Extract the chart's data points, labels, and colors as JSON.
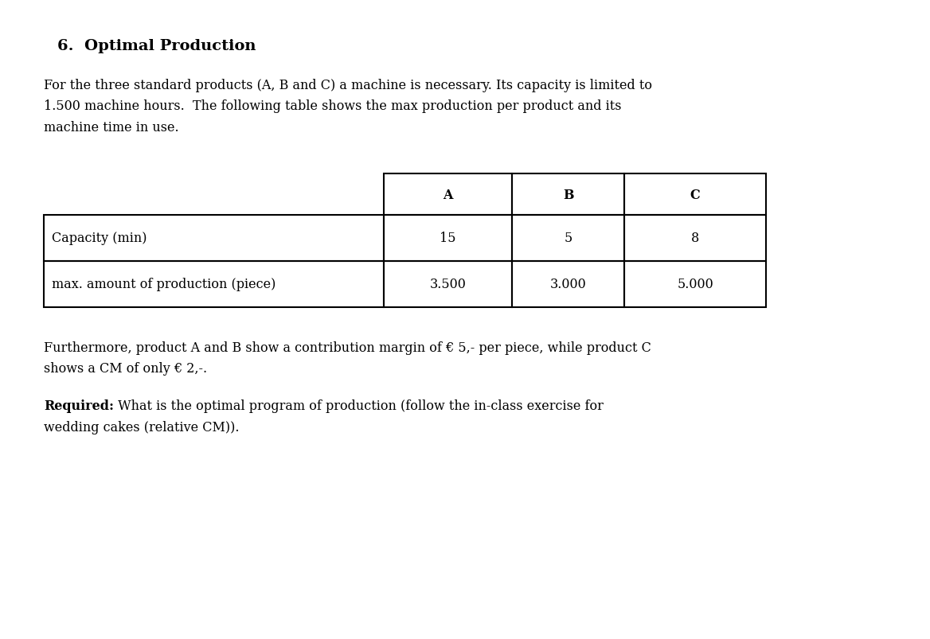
{
  "title": "6.  Optimal Production",
  "para1_line1": "For the three standard products (A, B and C) a machine is necessary. Its capacity is limited to",
  "para1_line2": "1.500 machine hours.  The following table shows the max production per product and its",
  "para1_line3": "machine time in use.",
  "col_headers": [
    "A",
    "B",
    "C"
  ],
  "row1_label": "Capacity (min)",
  "row1_vals": [
    "15",
    "5",
    "8"
  ],
  "row2_label": "max. amount of production (piece)",
  "row2_vals": [
    "3.500",
    "3.000",
    "5.000"
  ],
  "para2_line1": "Furthermore, product A and B show a contribution margin of € 5,- per piece, while product C",
  "para2_line2": "shows a CM of only € 2,-.",
  "para3_bold": "Required:",
  "para3_rest": " What is the optimal program of production (follow the in-class exercise for",
  "para3_line2": "wedding cakes (relative CM)).",
  "bg_color": "#ffffff",
  "text_color": "#000000",
  "title_fontsize": 14,
  "body_fontsize": 11.5,
  "table_fontsize": 11.5,
  "fig_width": 11.68,
  "fig_height": 8.04
}
